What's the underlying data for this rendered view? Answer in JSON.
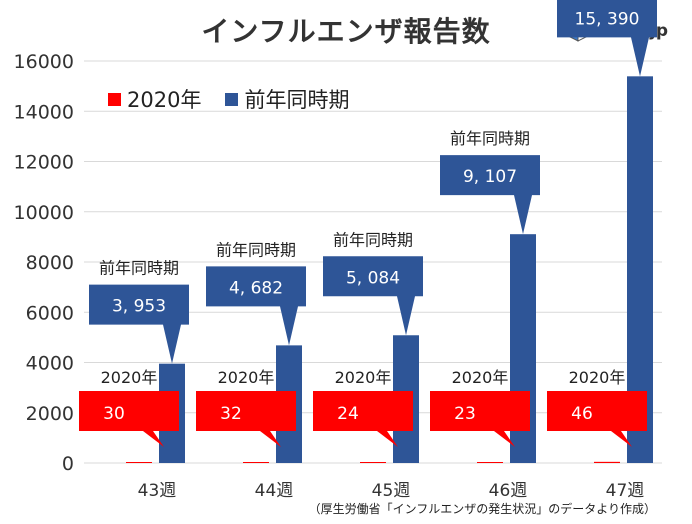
{
  "chart_data": {
    "type": "bar",
    "title": "インフルエンザ報告数",
    "categories": [
      "43週",
      "44週",
      "45週",
      "46週",
      "47週"
    ],
    "series": [
      {
        "name": "2020年",
        "color": "#ff0000",
        "values": [
          30,
          32,
          24,
          23,
          46
        ]
      },
      {
        "name": "前年同時期",
        "color": "#2e5597",
        "values": [
          3953,
          4682,
          5084,
          9107,
          15390
        ]
      }
    ],
    "ylim": [
      0,
      16000
    ],
    "yticks": [
      0,
      2000,
      4000,
      6000,
      8000,
      10000,
      12000,
      14000,
      16000
    ],
    "xlabel": "",
    "ylabel": "",
    "grid": true,
    "legend": "top-left",
    "callouts": {
      "current_label": "2020年",
      "current_values": [
        "30",
        "32",
        "24",
        "23",
        "46"
      ],
      "previous_label": "前年同時期",
      "previous_values": [
        "3, 953",
        "4, 682",
        "5, 084",
        "9, 107",
        "15, 390"
      ]
    }
  },
  "brand": {
    "logo_text": "tenki.jp"
  },
  "source_note": "（厚生労働省「インフルエンザの発生状況」のデータより作成）",
  "colors": {
    "grid": "#d9d9d9",
    "callout_red": "#ff0000",
    "callout_blue": "#2e5597"
  }
}
